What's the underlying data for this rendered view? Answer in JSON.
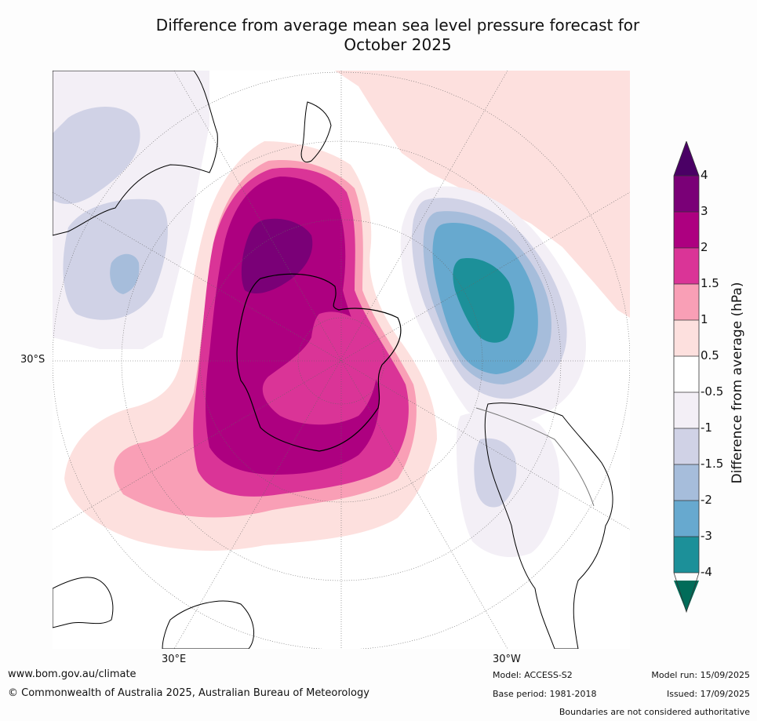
{
  "map": {
    "title_line1": "Difference from average mean sea level pressure forecast for",
    "title_line2": "October 2025",
    "labels": {
      "lat_30s": "30°S",
      "lon_30e": "30°E",
      "lon_30w": "30°W"
    }
  },
  "colorbar": {
    "title": "Difference from average (hPa)",
    "ticks": [
      "4",
      "3",
      "2",
      "1.5",
      "1",
      "0.5",
      "-0.5",
      "-1",
      "-1.5",
      "-2",
      "-3",
      "-4"
    ],
    "colors": {
      "gt4": "#4a0065",
      "3_4": "#7a0077",
      "2_3": "#ad0080",
      "1.5_2": "#da3497",
      "1_1.5": "#f99fb6",
      "0.5_1": "#fde0de",
      "neutral": "#ffffff",
      "neg0.5_neg1": "#f3eff6",
      "neg1_neg1.5": "#d0d2e6",
      "neg1.5_neg2": "#a6bddb",
      "neg2_neg3": "#67a9cf",
      "neg3_neg4": "#1c9099",
      "lt_neg4": "#016c59"
    }
  },
  "footer": {
    "url": "www.bom.gov.au/climate",
    "copyright": "© Commonwealth of Australia 2025, Australian Bureau of Meteorology",
    "model": "Model: ACCESS-S2",
    "base_period": "Base period: 1981-2018",
    "model_run": "Model run: 15/09/2025",
    "issued": "Issued: 17/09/2025",
    "boundaries": "Boundaries are not considered authoritative"
  }
}
